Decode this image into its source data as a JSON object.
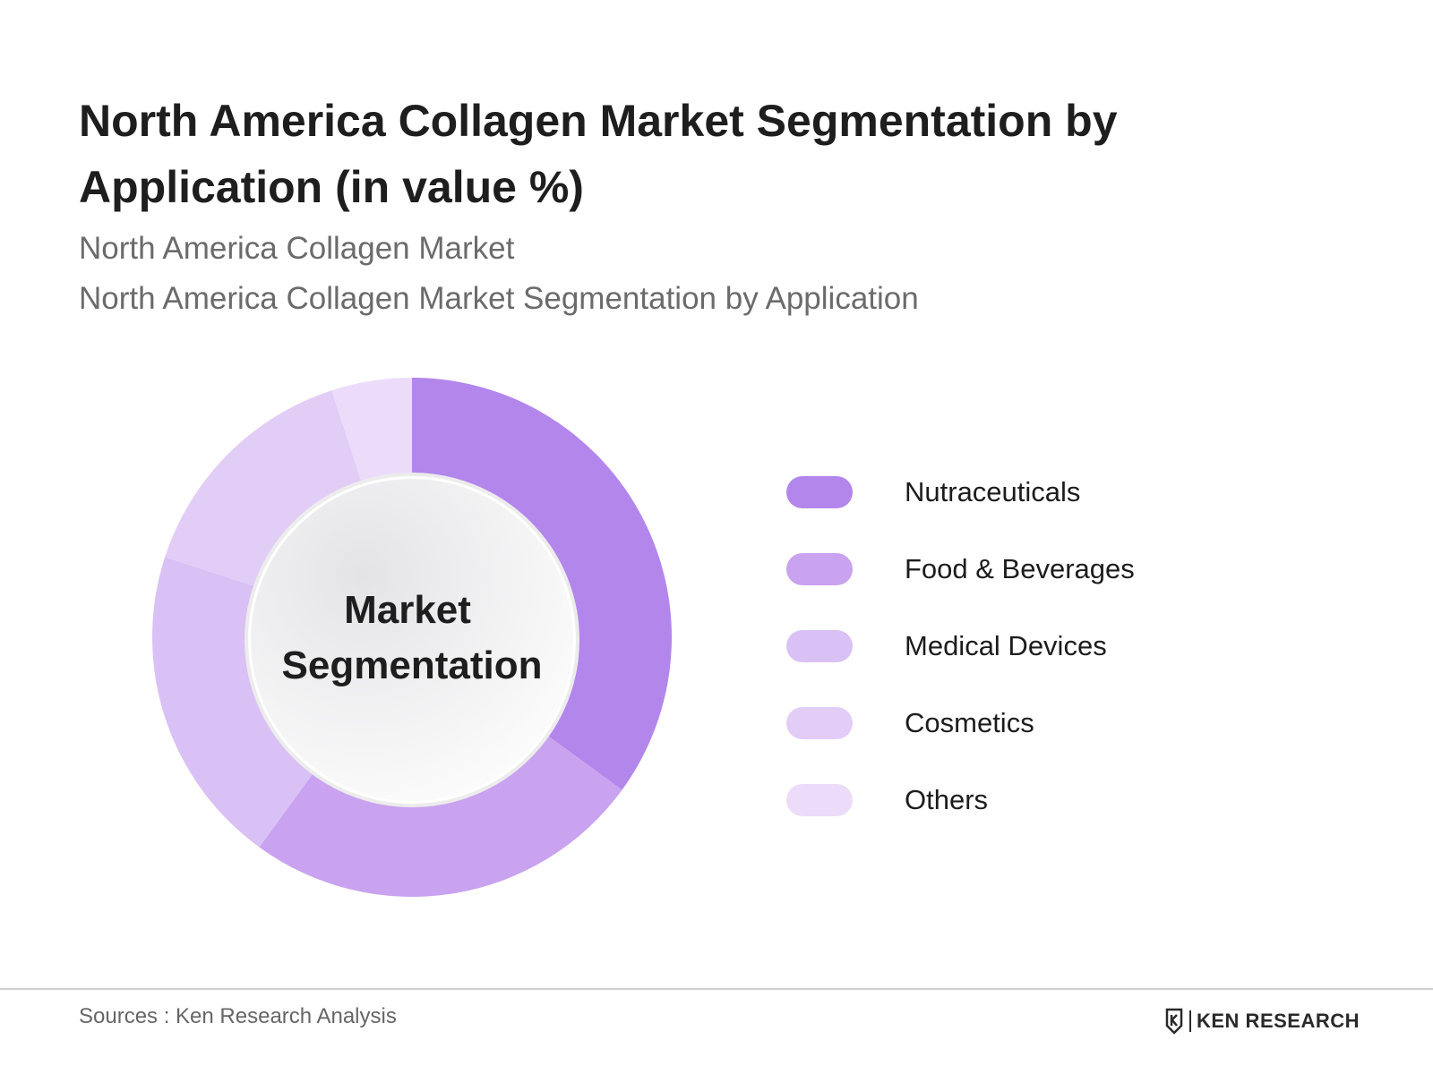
{
  "title": "North America Collagen Market Segmentation by Application (in value %)",
  "subtitle_1": "North America Collagen Market",
  "subtitle_2": "North America Collagen Market Segmentation by Application",
  "chart_data": {
    "type": "pie",
    "variant": "donut",
    "center_label": [
      "Market",
      "Segmentation"
    ],
    "categories": [
      "Nutraceuticals",
      "Food & Beverages",
      "Medical Devices",
      "Cosmetics",
      "Others"
    ],
    "values": [
      35,
      25,
      20,
      15,
      5
    ],
    "colors": [
      "#b386ec",
      "#c9a2f0",
      "#d9c0f5",
      "#e2cdf7",
      "#ecdcfa"
    ],
    "legend_placement": "right"
  },
  "footer": {
    "source": "Sources : Ken Research Analysis",
    "brand": "KEN RESEARCH"
  }
}
